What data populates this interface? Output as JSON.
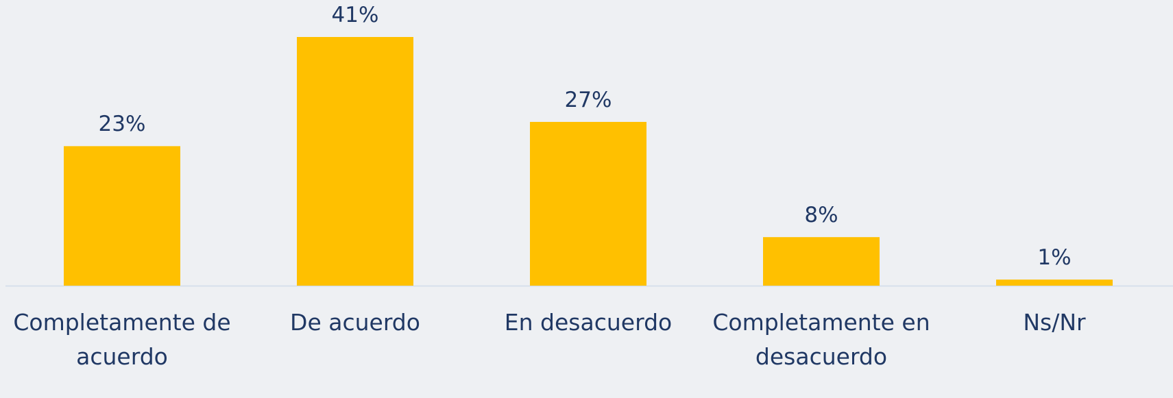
{
  "chart_data": {
    "type": "bar",
    "categories": [
      "Completamente de acuerdo",
      "De acuerdo",
      "En desacuerdo",
      "Completamente en desacuerdo",
      "Ns/Nr"
    ],
    "values": [
      23,
      41,
      27,
      8,
      1
    ],
    "value_labels": [
      "23%",
      "41%",
      "27%",
      "8%",
      "1%"
    ],
    "color": "#ffc000"
  }
}
